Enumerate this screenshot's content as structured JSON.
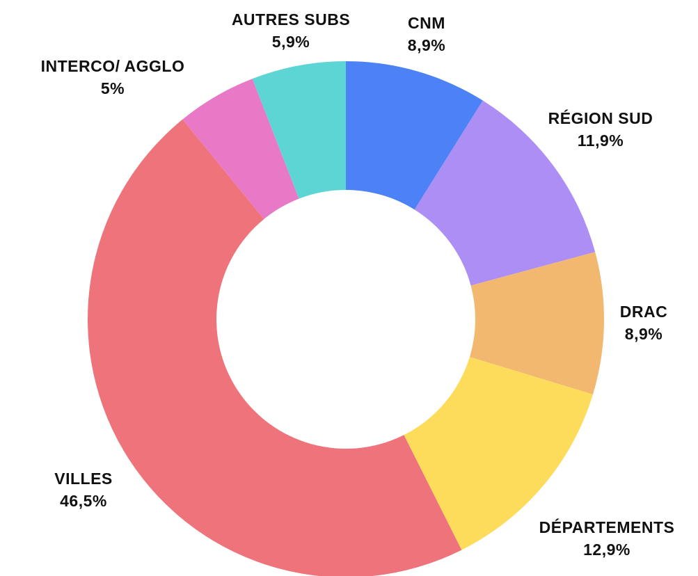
{
  "chart_data": {
    "type": "donut",
    "categories": [
      "CNM",
      "RÉGION SUD",
      "DRAC",
      "DÉPARTEMENTS",
      "VILLES",
      "INTERCO/ AGGLO",
      "AUTRES SUBS"
    ],
    "values": [
      8.9,
      11.9,
      8.9,
      12.9,
      46.5,
      5,
      5.9
    ],
    "value_labels": [
      "8,9%",
      "11,9%",
      "8,9%",
      "12,9%",
      "46,5%",
      "5%",
      "5,9%"
    ],
    "colors": [
      "#4d82f7",
      "#ad8ef5",
      "#f2b870",
      "#fddc5c",
      "#ef737b",
      "#e879c6",
      "#5dd5d4"
    ]
  }
}
